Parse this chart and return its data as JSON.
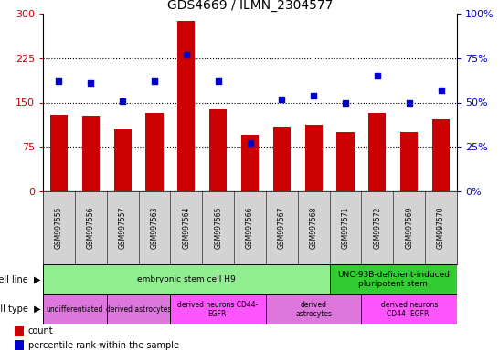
{
  "title": "GDS4669 / ILMN_2304577",
  "samples": [
    "GSM997555",
    "GSM997556",
    "GSM997557",
    "GSM997563",
    "GSM997564",
    "GSM997565",
    "GSM997566",
    "GSM997567",
    "GSM997568",
    "GSM997571",
    "GSM997572",
    "GSM997569",
    "GSM997570"
  ],
  "counts": [
    130,
    128,
    105,
    132,
    287,
    138,
    95,
    110,
    112,
    100,
    132,
    100,
    122
  ],
  "percentiles": [
    62,
    61,
    51,
    62,
    77,
    62,
    27,
    52,
    54,
    50,
    65,
    50,
    57
  ],
  "ylim_left": [
    0,
    300
  ],
  "ylim_right": [
    0,
    100
  ],
  "yticks_left": [
    0,
    75,
    150,
    225,
    300
  ],
  "yticks_right": [
    0,
    25,
    50,
    75,
    100
  ],
  "bar_color": "#cc0000",
  "dot_color": "#0000cc",
  "sample_bg": "#d3d3d3",
  "cell_line_groups": [
    {
      "label": "embryonic stem cell H9",
      "start": 0,
      "end": 9,
      "color": "#90ee90"
    },
    {
      "label": "UNC-93B-deficient-induced\npluripotent stem",
      "start": 9,
      "end": 13,
      "color": "#33cc33"
    }
  ],
  "cell_type_groups": [
    {
      "label": "undifferentiated",
      "start": 0,
      "end": 2,
      "color": "#dd77dd"
    },
    {
      "label": "derived astrocytes",
      "start": 2,
      "end": 4,
      "color": "#dd77dd"
    },
    {
      "label": "derived neurons CD44-\nEGFR-",
      "start": 4,
      "end": 7,
      "color": "#ff55ff"
    },
    {
      "label": "derived\nastrocytes",
      "start": 7,
      "end": 10,
      "color": "#dd77dd"
    },
    {
      "label": "derived neurons\nCD44- EGFR-",
      "start": 10,
      "end": 13,
      "color": "#ff55ff"
    }
  ]
}
